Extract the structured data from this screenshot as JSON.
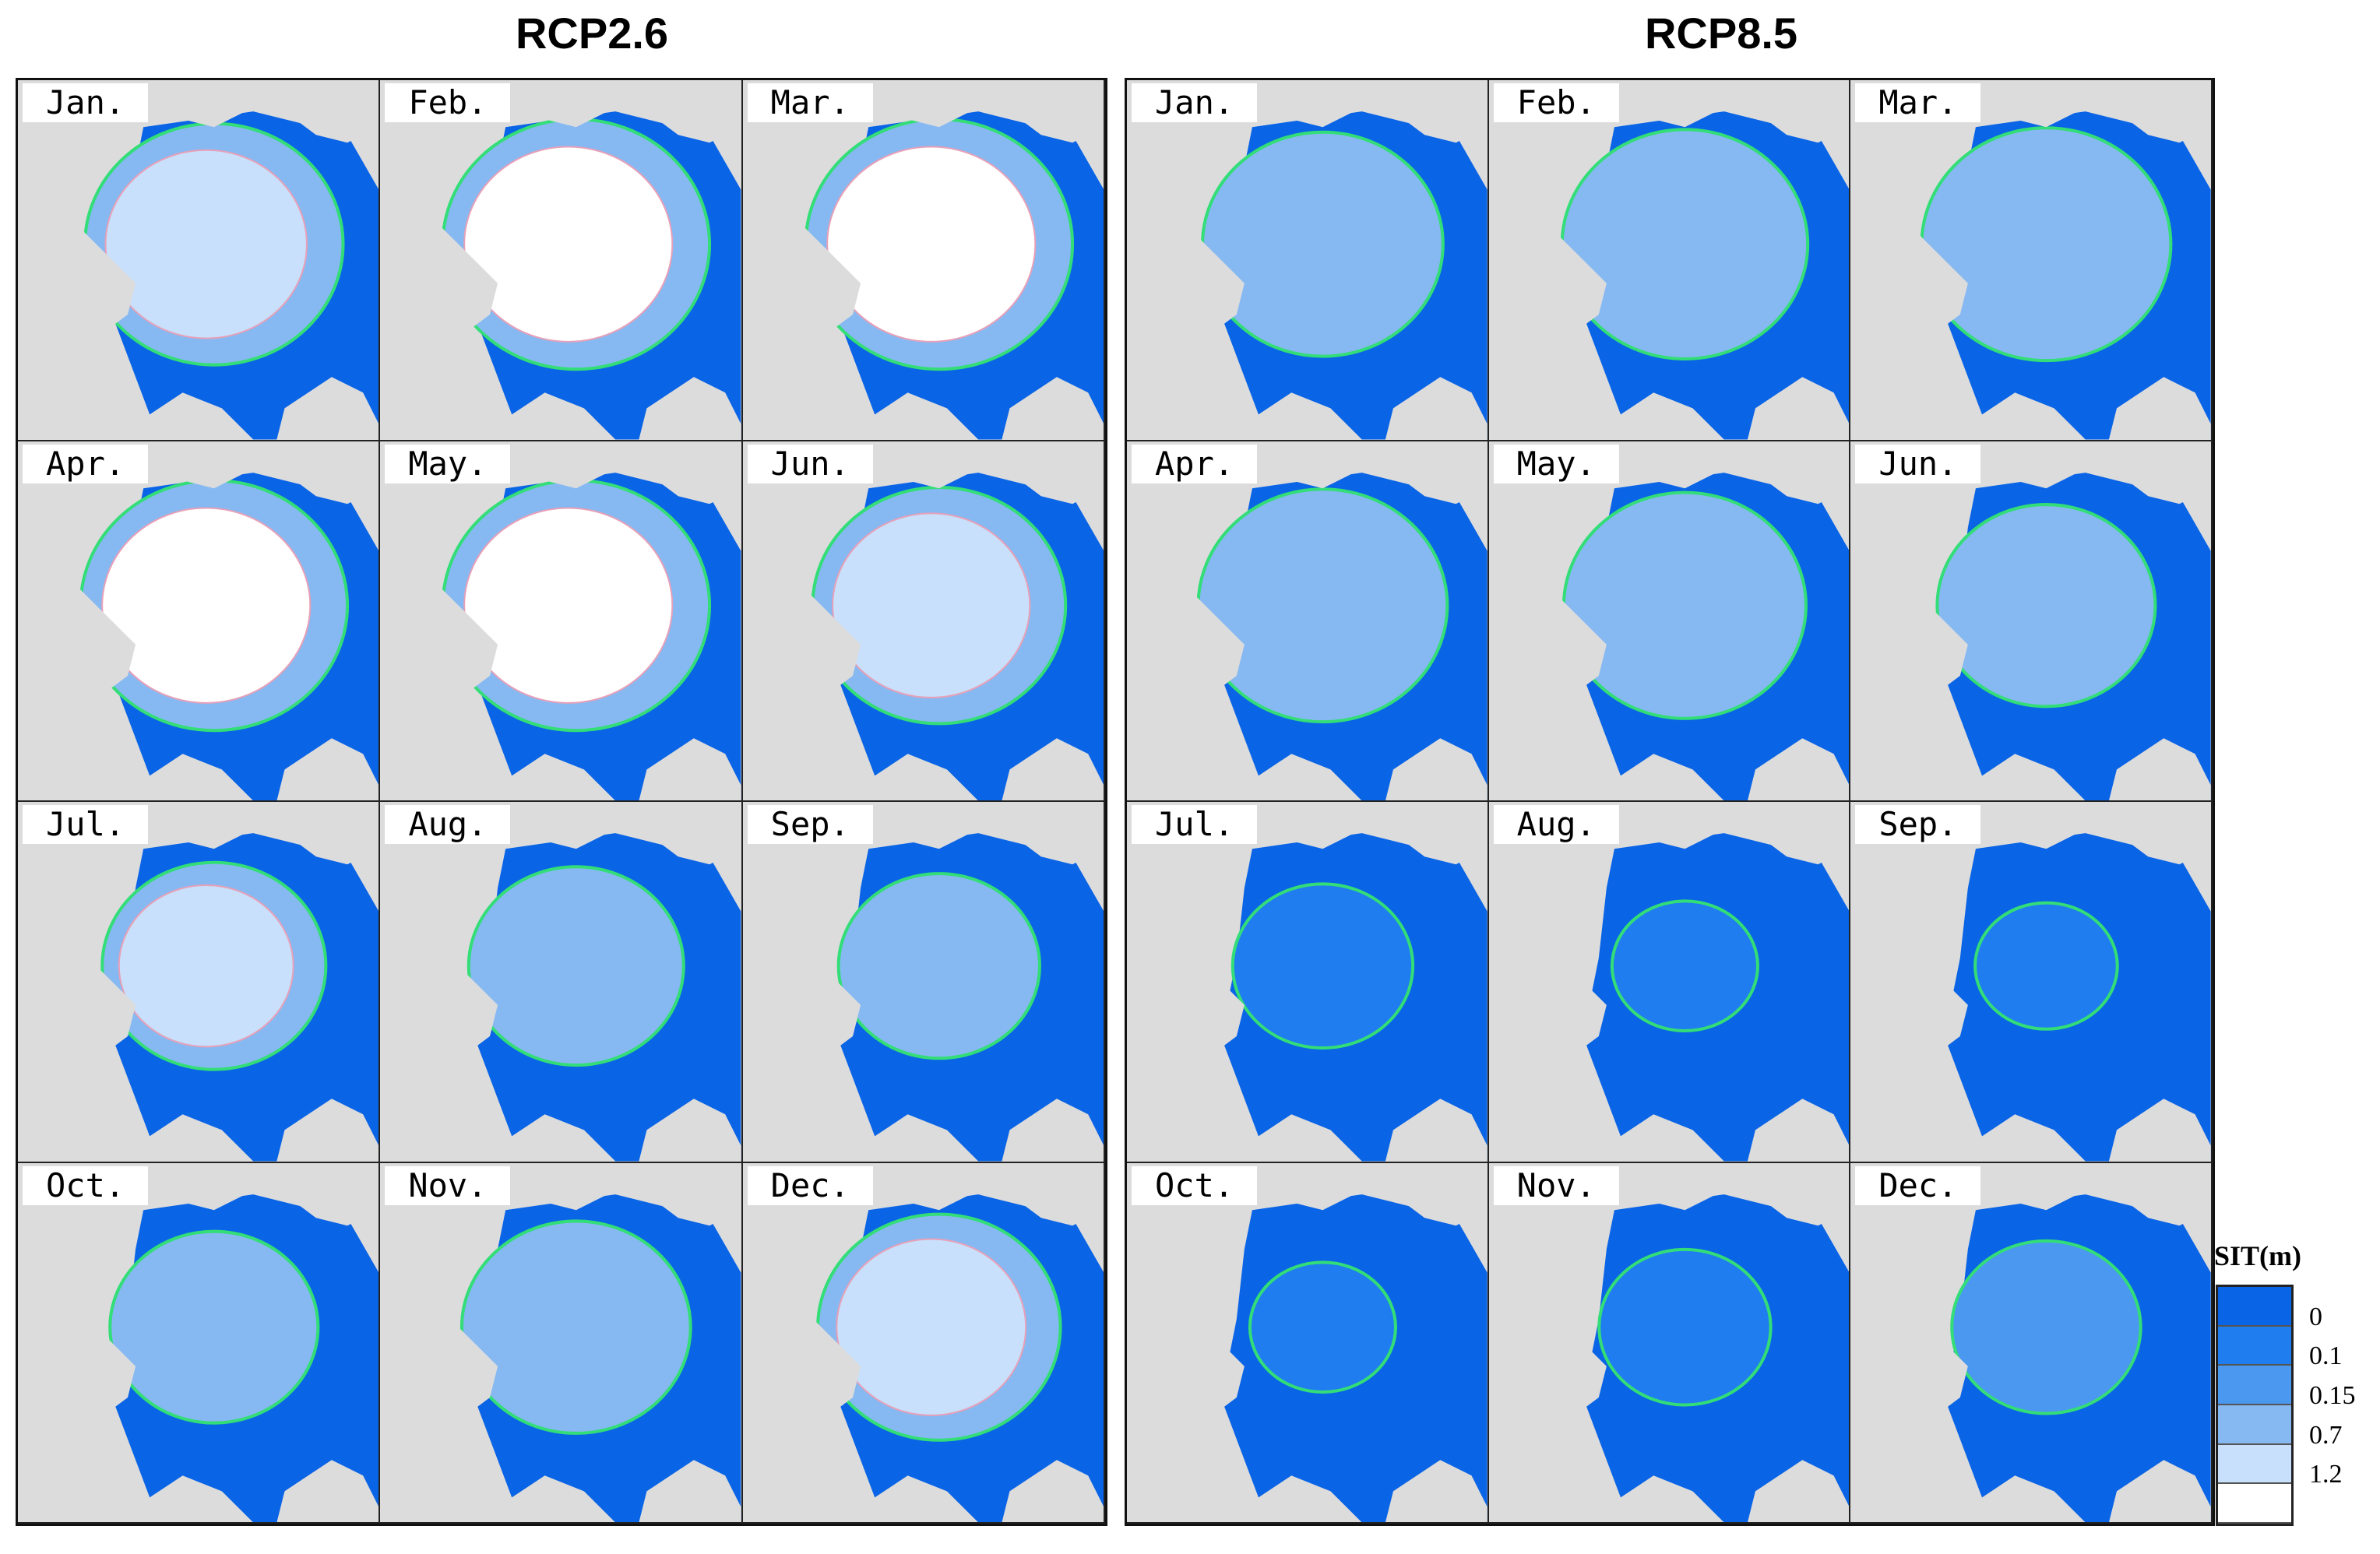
{
  "titles": {
    "left": "RCP2.6",
    "right": "RCP8.5"
  },
  "months": [
    "Jan.",
    "Feb.",
    "Mar.",
    "Apr.",
    "May.",
    "Jun.",
    "Jul.",
    "Aug.",
    "Sep.",
    "Oct.",
    "Nov.",
    "Dec."
  ],
  "legend": {
    "title": "SIT(m)",
    "levels": [
      "0",
      "0.1",
      "0.15",
      "0.7",
      "1.2"
    ],
    "colors": [
      "#0a64e6",
      "#1f7df0",
      "#4a98f0",
      "#86b9f2",
      "#c8e0fb",
      "#ffffff"
    ]
  },
  "colors": {
    "land": "#dcdcdc",
    "ocean": "#0a64e6",
    "edge": "#33dd77",
    "inner_edge": "#e7a0b8"
  },
  "scenarios": {
    "rcp26": {
      "ice_rank": [
        4,
        5,
        5,
        5,
        5,
        4,
        4,
        3,
        3,
        3,
        3,
        4
      ],
      "ice_extent": [
        0.95,
        1.0,
        1.0,
        1.0,
        1.0,
        0.92,
        0.75,
        0.7,
        0.62,
        0.66,
        0.78,
        0.86
      ]
    },
    "rcp85": {
      "ice_rank": [
        3,
        3,
        3,
        3,
        3,
        3,
        1,
        0,
        0,
        0,
        1,
        2
      ],
      "ice_extent": [
        0.85,
        0.88,
        0.9,
        0.9,
        0.86,
        0.72,
        0.5,
        0.3,
        0.28,
        0.3,
        0.45,
        0.55
      ]
    }
  }
}
